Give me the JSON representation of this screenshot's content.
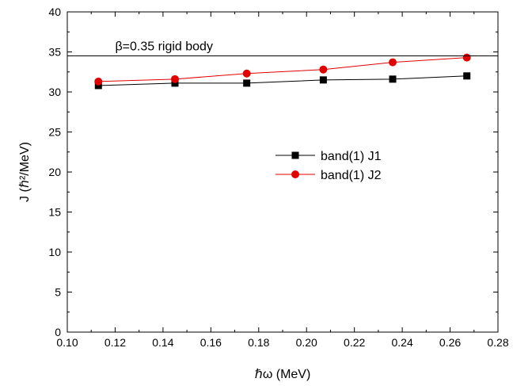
{
  "chart_data": {
    "type": "line",
    "xlabel": "ℏω (MeV)",
    "ylabel": "J (ℏ²/MeV)",
    "xlim": [
      0.1,
      0.28
    ],
    "ylim": [
      0,
      40
    ],
    "x_ticks": [
      "0.10",
      "0.12",
      "0.14",
      "0.16",
      "0.18",
      "0.20",
      "0.22",
      "0.24",
      "0.26",
      "0.28"
    ],
    "y_ticks": [
      "0",
      "5",
      "10",
      "15",
      "20",
      "25",
      "30",
      "35",
      "40"
    ],
    "grid": false,
    "legend_position": "center-right",
    "series": [
      {
        "name": "band(1) J1",
        "marker": "square",
        "color": "#000000",
        "x": [
          0.113,
          0.145,
          0.175,
          0.207,
          0.236,
          0.267
        ],
        "y": [
          30.8,
          31.1,
          31.1,
          31.5,
          31.6,
          32.0
        ]
      },
      {
        "name": "band(1) J2",
        "marker": "circle",
        "color": "#e00000",
        "x": [
          0.113,
          0.145,
          0.175,
          0.207,
          0.236,
          0.267
        ],
        "y": [
          31.3,
          31.6,
          32.3,
          32.8,
          33.7,
          34.3
        ]
      }
    ],
    "reference_line": {
      "label": "β=0.35 rigid body",
      "y": 34.5,
      "color": "#000000"
    }
  }
}
